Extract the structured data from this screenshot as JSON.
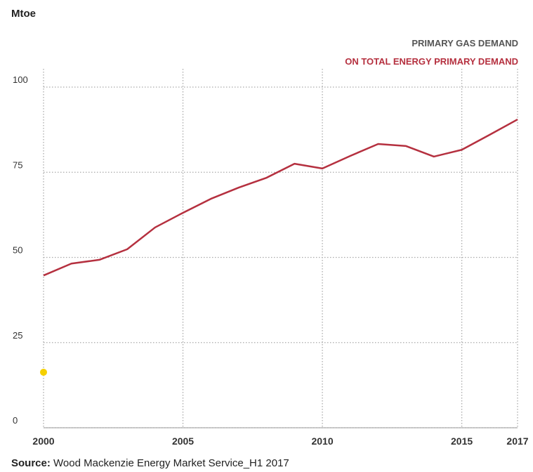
{
  "chart_data": {
    "type": "line",
    "y_axis_label": "Mtoe",
    "title": "PRIMARY GAS DEMAND",
    "subtitle": "ON TOTAL ENERGY PRIMARY DEMAND",
    "x": [
      2000,
      2001,
      2002,
      2003,
      2004,
      2005,
      2006,
      2007,
      2008,
      2009,
      2010,
      2011,
      2012,
      2013,
      2014,
      2015,
      2016,
      2017
    ],
    "series": [
      {
        "color": "#b5303f",
        "values": [
          44.7,
          48.2,
          49.3,
          52.4,
          58.8,
          63.1,
          67.2,
          70.5,
          73.4,
          77.5,
          76.1,
          79.8,
          83.3,
          82.7,
          79.6,
          81.6,
          86.0,
          90.5
        ]
      },
      {
        "color": "#f5d000",
        "values": [
          16.3,
          null,
          null,
          null,
          null,
          null,
          null,
          null,
          null,
          null,
          null,
          null,
          null,
          null,
          null,
          null,
          null,
          null
        ]
      }
    ],
    "xlim": [
      2000,
      2017
    ],
    "xticks": [
      2000,
      2005,
      2010,
      2015,
      2017
    ],
    "ylim": [
      0,
      100
    ],
    "yticks": [
      0,
      25,
      50,
      75,
      100
    ],
    "grid": true,
    "source_label": "Source:",
    "source": "Wood Mackenzie Energy Market Service_H1 2017"
  }
}
